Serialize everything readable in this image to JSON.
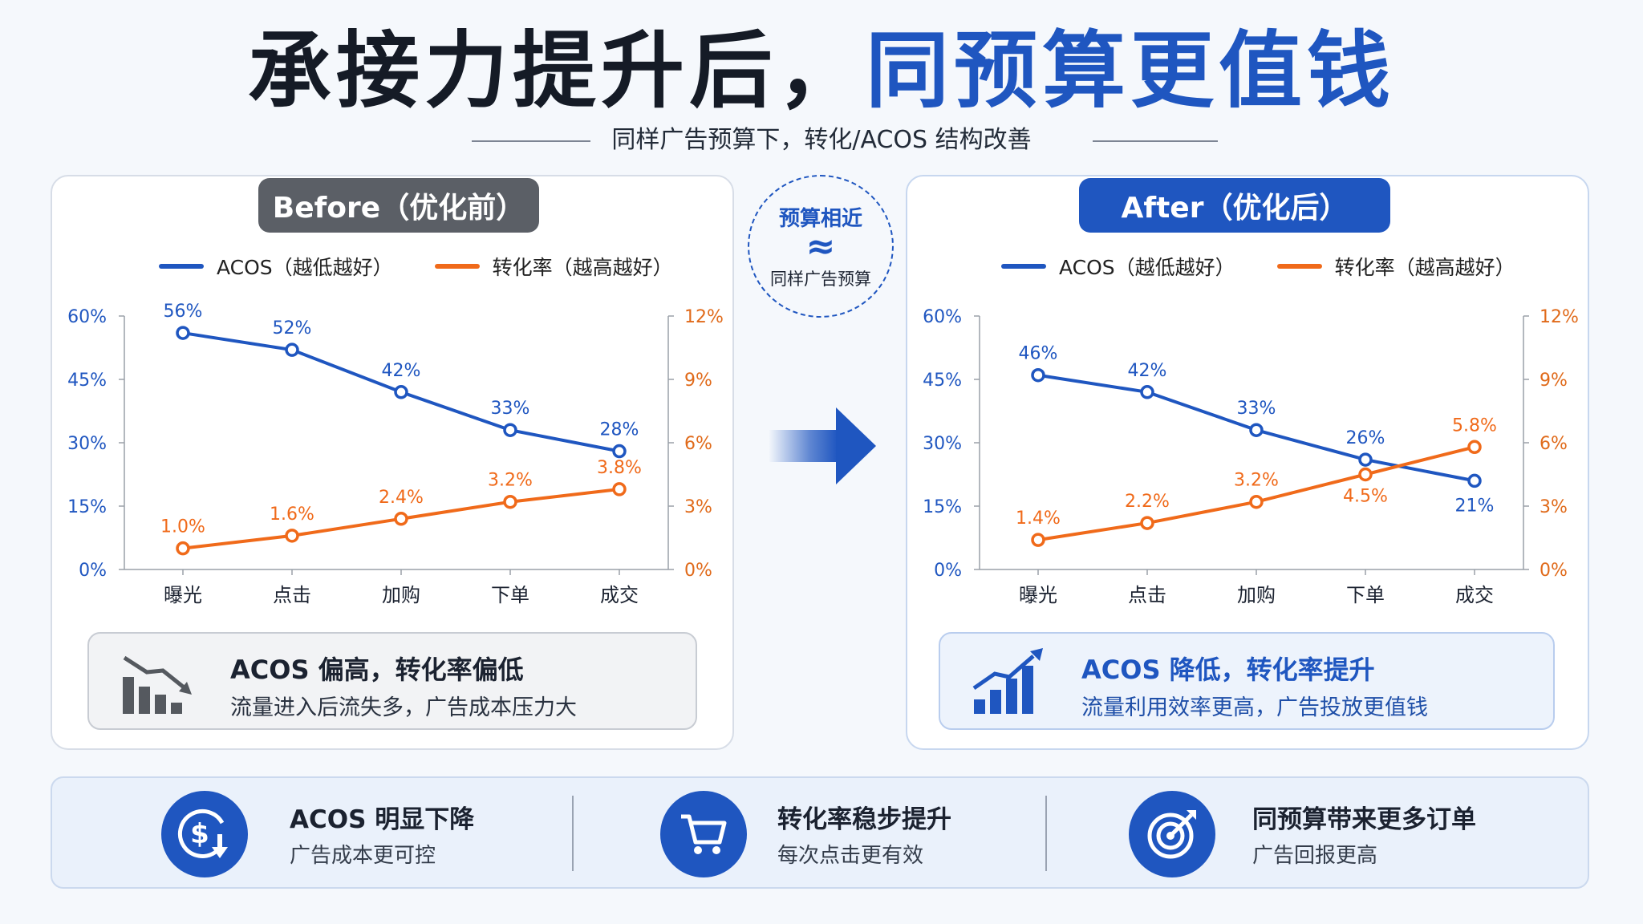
{
  "title": {
    "part1": "承接力提升后，",
    "part2": "同预算更值钱"
  },
  "subtitle": "同样广告预算下，转化/ACOS 结构改善",
  "badge": {
    "line1": "预算相近",
    "symbol": "≈",
    "line2": "同样广告预算"
  },
  "colors": {
    "acos": "#1f56c0",
    "conversion": "#f06a1a",
    "accent": "#1f56c0",
    "before_gray": "#5b5f66"
  },
  "legend": {
    "acos": "ACOS（越低越好）",
    "conversion": "转化率（越高越好）"
  },
  "before": {
    "label": "Before（优化前）",
    "note_title": "ACOS 偏高，转化率偏低",
    "note_desc": "流量进入后流失多，广告成本压力大",
    "note_icon": "declining-bars-icon"
  },
  "after": {
    "label": "After（优化后）",
    "note_title": "ACOS 降低，转化率提升",
    "note_desc": "流量利用效率更高，广告投放更值钱",
    "note_icon": "rising-bars-icon"
  },
  "chart_data": [
    {
      "type": "line",
      "categories": [
        "曝光",
        "点击",
        "加购",
        "下单",
        "成交"
      ],
      "series": [
        {
          "name": "ACOS（越低越好）",
          "axis": "left",
          "values": [
            56,
            52,
            42,
            33,
            28
          ],
          "labels": [
            "56%",
            "52%",
            "42%",
            "33%",
            "28%"
          ]
        },
        {
          "name": "转化率（越高越好）",
          "axis": "right",
          "values": [
            1.0,
            1.6,
            2.4,
            3.2,
            3.8
          ],
          "labels": [
            "1.0%",
            "1.6%",
            "2.4%",
            "3.2%",
            "3.8%"
          ]
        }
      ],
      "ylim_left": [
        0,
        60
      ],
      "yticks_left": [
        "0%",
        "15%",
        "30%",
        "45%",
        "60%"
      ],
      "ylim_right": [
        0,
        12
      ],
      "yticks_right": [
        "0%",
        "3%",
        "6%",
        "9%",
        "12%"
      ],
      "legend_position": "top"
    },
    {
      "type": "line",
      "categories": [
        "曝光",
        "点击",
        "加购",
        "下单",
        "成交"
      ],
      "series": [
        {
          "name": "ACOS（越低越好）",
          "axis": "left",
          "values": [
            46,
            42,
            33,
            26,
            21
          ],
          "labels": [
            "46%",
            "42%",
            "33%",
            "26%",
            "21%"
          ]
        },
        {
          "name": "转化率（越高越好）",
          "axis": "right",
          "values": [
            1.4,
            2.2,
            3.2,
            4.5,
            5.8
          ],
          "labels": [
            "1.4%",
            "2.2%",
            "3.2%",
            "4.5%",
            "5.8%"
          ]
        }
      ],
      "ylim_left": [
        0,
        60
      ],
      "yticks_left": [
        "0%",
        "15%",
        "30%",
        "45%",
        "60%"
      ],
      "ylim_right": [
        0,
        12
      ],
      "yticks_right": [
        "0%",
        "3%",
        "6%",
        "9%",
        "12%"
      ],
      "legend_position": "top"
    }
  ],
  "benefits": [
    {
      "title": "ACOS 明显下降",
      "desc": "广告成本更可控",
      "icon": "dollar-down-icon"
    },
    {
      "title": "转化率稳步提升",
      "desc": "每次点击更有效",
      "icon": "shopping-cart-icon"
    },
    {
      "title": "同预算带来更多订单",
      "desc": "广告回报更高",
      "icon": "target-arrow-icon"
    }
  ]
}
